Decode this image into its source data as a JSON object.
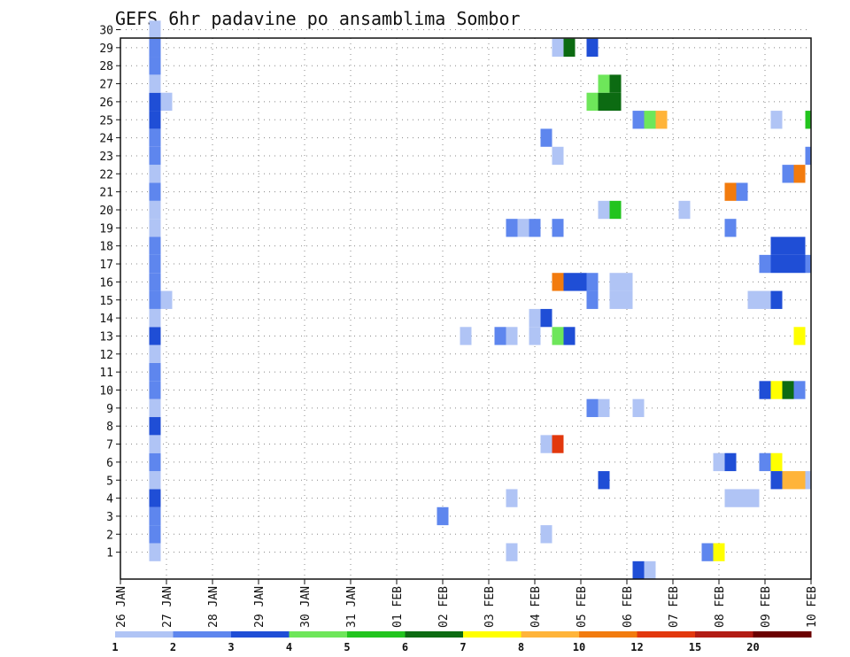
{
  "chart_data": {
    "type": "heatmap",
    "title": "GEFS 6hr padavine po ansamblima Sombor",
    "xlabel": "",
    "ylabel": "",
    "x_ticks": [
      "26 JAN",
      "27 JAN",
      "28 JAN",
      "29 JAN",
      "30 JAN",
      "31 JAN",
      "01 FEB",
      "02 FEB",
      "03 FEB",
      "04 FEB",
      "05 FEB",
      "06 FEB",
      "07 FEB",
      "08 FEB",
      "09 FEB",
      "10 FEB"
    ],
    "y_ticks": [
      "1",
      "2",
      "3",
      "4",
      "5",
      "6",
      "7",
      "8",
      "9",
      "10",
      "11",
      "12",
      "13",
      "14",
      "15",
      "16",
      "17",
      "18",
      "19",
      "20",
      "21",
      "22",
      "23",
      "24",
      "25",
      "26",
      "27",
      "28",
      "29",
      "30"
    ],
    "y_range": [
      0,
      30
    ],
    "x_range": [
      0,
      60
    ],
    "x_unit": "6-hour steps from 26 JAN 00Z",
    "grid": true,
    "legend": {
      "placement": "bottom",
      "labels": [
        "1",
        "2",
        "3",
        "4",
        "5",
        "6",
        "7",
        "8",
        "10",
        "12",
        "15",
        "20"
      ],
      "colors": [
        "#b0c4f5",
        "#5e86ee",
        "#1f4ed6",
        "#6ee65a",
        "#22c41e",
        "#0c6b12",
        "#ffff00",
        "#ffb43a",
        "#f27b0e",
        "#e2380d",
        "#b21c14",
        "#6b0000"
      ]
    },
    "cells": [
      {
        "t": 3,
        "m": 1,
        "v": 1
      },
      {
        "t": 3,
        "m": 2,
        "v": 2
      },
      {
        "t": 3,
        "m": 3,
        "v": 2
      },
      {
        "t": 3,
        "m": 4,
        "v": 3
      },
      {
        "t": 3,
        "m": 5,
        "v": 1
      },
      {
        "t": 3,
        "m": 6,
        "v": 2
      },
      {
        "t": 3,
        "m": 7,
        "v": 1
      },
      {
        "t": 3,
        "m": 8,
        "v": 3
      },
      {
        "t": 3,
        "m": 9,
        "v": 1
      },
      {
        "t": 3,
        "m": 10,
        "v": 2
      },
      {
        "t": 3,
        "m": 11,
        "v": 2
      },
      {
        "t": 3,
        "m": 12,
        "v": 1
      },
      {
        "t": 3,
        "m": 13,
        "v": 3
      },
      {
        "t": 3,
        "m": 14,
        "v": 1
      },
      {
        "t": 3,
        "m": 15,
        "v": 2
      },
      {
        "t": 3,
        "m": 16,
        "v": 2
      },
      {
        "t": 3,
        "m": 17,
        "v": 2
      },
      {
        "t": 3,
        "m": 18,
        "v": 2
      },
      {
        "t": 3,
        "m": 19,
        "v": 1
      },
      {
        "t": 3,
        "m": 20,
        "v": 1
      },
      {
        "t": 3,
        "m": 21,
        "v": 2
      },
      {
        "t": 3,
        "m": 22,
        "v": 1
      },
      {
        "t": 3,
        "m": 23,
        "v": 2
      },
      {
        "t": 3,
        "m": 24,
        "v": 2
      },
      {
        "t": 3,
        "m": 25,
        "v": 3
      },
      {
        "t": 3,
        "m": 26,
        "v": 3
      },
      {
        "t": 3,
        "m": 27,
        "v": 1
      },
      {
        "t": 3,
        "m": 28,
        "v": 2
      },
      {
        "t": 3,
        "m": 29,
        "v": 2
      },
      {
        "t": 3,
        "m": 30,
        "v": 1
      },
      {
        "t": 4,
        "m": 15,
        "v": 1
      },
      {
        "t": 4,
        "m": 26,
        "v": 1
      },
      {
        "t": 28,
        "m": 3,
        "v": 2
      },
      {
        "t": 30,
        "m": 13,
        "v": 1
      },
      {
        "t": 33,
        "m": 13,
        "v": 2
      },
      {
        "t": 34,
        "m": 13,
        "v": 1
      },
      {
        "t": 34,
        "m": 1,
        "v": 1
      },
      {
        "t": 34,
        "m": 4,
        "v": 1
      },
      {
        "t": 34,
        "m": 19,
        "v": 2
      },
      {
        "t": 35,
        "m": 19,
        "v": 1
      },
      {
        "t": 36,
        "m": 19,
        "v": 2
      },
      {
        "t": 36,
        "m": 14,
        "v": 1
      },
      {
        "t": 36,
        "m": 13,
        "v": 1
      },
      {
        "t": 37,
        "m": 14,
        "v": 3
      },
      {
        "t": 37,
        "m": 2,
        "v": 1
      },
      {
        "t": 37,
        "m": 7,
        "v": 1
      },
      {
        "t": 37,
        "m": 24,
        "v": 2
      },
      {
        "t": 38,
        "m": 7,
        "v": 12
      },
      {
        "t": 38,
        "m": 13,
        "v": 4
      },
      {
        "t": 38,
        "m": 16,
        "v": 10
      },
      {
        "t": 38,
        "m": 19,
        "v": 2
      },
      {
        "t": 38,
        "m": 23,
        "v": 1
      },
      {
        "t": 38,
        "m": 29,
        "v": 1
      },
      {
        "t": 39,
        "m": 13,
        "v": 3
      },
      {
        "t": 39,
        "m": 16,
        "v": 3
      },
      {
        "t": 39,
        "m": 29,
        "v": 6
      },
      {
        "t": 40,
        "m": 16,
        "v": 3
      },
      {
        "t": 41,
        "m": 9,
        "v": 2
      },
      {
        "t": 41,
        "m": 15,
        "v": 2
      },
      {
        "t": 41,
        "m": 16,
        "v": 2
      },
      {
        "t": 41,
        "m": 26,
        "v": 4
      },
      {
        "t": 41,
        "m": 29,
        "v": 3
      },
      {
        "t": 42,
        "m": 5,
        "v": 3
      },
      {
        "t": 42,
        "m": 9,
        "v": 1
      },
      {
        "t": 42,
        "m": 20,
        "v": 1
      },
      {
        "t": 42,
        "m": 26,
        "v": 6
      },
      {
        "t": 42,
        "m": 27,
        "v": 4
      },
      {
        "t": 43,
        "m": 20,
        "v": 5
      },
      {
        "t": 43,
        "m": 26,
        "v": 6
      },
      {
        "t": 43,
        "m": 27,
        "v": 6
      },
      {
        "t": 43,
        "m": 16,
        "v": 1
      },
      {
        "t": 43,
        "m": 15,
        "v": 1
      },
      {
        "t": 44,
        "m": 16,
        "v": 1
      },
      {
        "t": 44,
        "m": 15,
        "v": 1
      },
      {
        "t": 45,
        "m": 25,
        "v": 2
      },
      {
        "t": 45,
        "m": 9,
        "v": 1
      },
      {
        "t": 45,
        "m": 0,
        "v": 3
      },
      {
        "t": 46,
        "m": 25,
        "v": 4
      },
      {
        "t": 46,
        "m": 0,
        "v": 1
      },
      {
        "t": 47,
        "m": 25,
        "v": 8
      },
      {
        "t": 49,
        "m": 20,
        "v": 1
      },
      {
        "t": 51,
        "m": 1,
        "v": 2
      },
      {
        "t": 52,
        "m": 1,
        "v": 7
      },
      {
        "t": 52,
        "m": 6,
        "v": 1
      },
      {
        "t": 53,
        "m": 6,
        "v": 3
      },
      {
        "t": 53,
        "m": 19,
        "v": 2
      },
      {
        "t": 53,
        "m": 21,
        "v": 10
      },
      {
        "t": 53,
        "m": 4,
        "v": 1
      },
      {
        "t": 54,
        "m": 21,
        "v": 2
      },
      {
        "t": 54,
        "m": 4,
        "v": 1
      },
      {
        "t": 55,
        "m": 4,
        "v": 1
      },
      {
        "t": 55,
        "m": 15,
        "v": 1
      },
      {
        "t": 56,
        "m": 15,
        "v": 1
      },
      {
        "t": 56,
        "m": 17,
        "v": 2
      },
      {
        "t": 56,
        "m": 10,
        "v": 3
      },
      {
        "t": 56,
        "m": 6,
        "v": 2
      },
      {
        "t": 57,
        "m": 10,
        "v": 7
      },
      {
        "t": 57,
        "m": 15,
        "v": 3
      },
      {
        "t": 57,
        "m": 17,
        "v": 3
      },
      {
        "t": 57,
        "m": 18,
        "v": 3
      },
      {
        "t": 57,
        "m": 25,
        "v": 1
      },
      {
        "t": 57,
        "m": 6,
        "v": 7
      },
      {
        "t": 57,
        "m": 5,
        "v": 3
      },
      {
        "t": 58,
        "m": 10,
        "v": 6
      },
      {
        "t": 58,
        "m": 17,
        "v": 3
      },
      {
        "t": 58,
        "m": 18,
        "v": 3
      },
      {
        "t": 58,
        "m": 22,
        "v": 2
      },
      {
        "t": 58,
        "m": 5,
        "v": 8
      },
      {
        "t": 59,
        "m": 10,
        "v": 2
      },
      {
        "t": 59,
        "m": 13,
        "v": 7
      },
      {
        "t": 59,
        "m": 17,
        "v": 3
      },
      {
        "t": 59,
        "m": 18,
        "v": 3
      },
      {
        "t": 59,
        "m": 22,
        "v": 10
      },
      {
        "t": 59,
        "m": 5,
        "v": 8
      },
      {
        "t": 60,
        "m": 25,
        "v": 5
      },
      {
        "t": 60,
        "m": 23,
        "v": 2
      },
      {
        "t": 60,
        "m": 17,
        "v": 2
      },
      {
        "t": 60,
        "m": 5,
        "v": 1
      }
    ]
  }
}
